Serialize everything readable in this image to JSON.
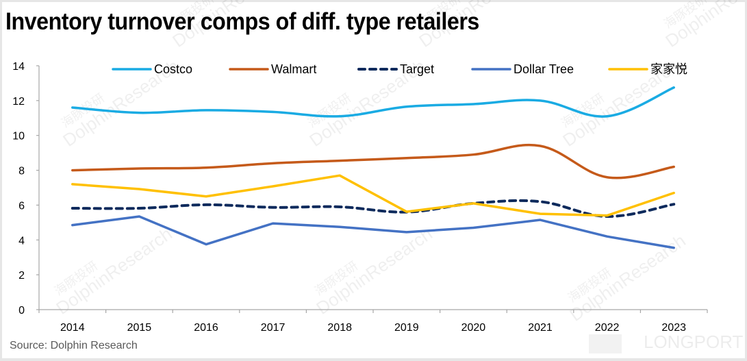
{
  "chart_data": {
    "type": "line",
    "title": "Inventory turnover comps of diff. type retailers",
    "xlabel": "",
    "ylabel": "",
    "ylim": [
      0,
      14
    ],
    "yticks": [
      0,
      2,
      4,
      6,
      8,
      10,
      12,
      14
    ],
    "grid": false,
    "legend_position": "top",
    "categories": [
      "2014",
      "2015",
      "2016",
      "2017",
      "2018",
      "2019",
      "2020",
      "2021",
      "2022",
      "2023"
    ],
    "series": [
      {
        "name": "Costco",
        "color": "#1AABE3",
        "style": "smooth",
        "values": [
          11.6,
          11.3,
          11.45,
          11.35,
          11.1,
          11.65,
          11.8,
          12.0,
          11.1,
          12.75
        ]
      },
      {
        "name": "Walmart",
        "color": "#C55A1A",
        "style": "smooth",
        "values": [
          8.0,
          8.1,
          8.15,
          8.4,
          8.55,
          8.7,
          8.9,
          9.4,
          7.6,
          8.2
        ]
      },
      {
        "name": "Target",
        "color": "#0D2A5C",
        "style": "dashed-smooth",
        "values": [
          5.82,
          5.82,
          6.02,
          5.87,
          5.9,
          5.6,
          6.1,
          6.2,
          5.35,
          6.05
        ]
      },
      {
        "name": "Dollar Tree",
        "color": "#4472C4",
        "style": "straight",
        "values": [
          4.85,
          5.35,
          3.75,
          4.95,
          4.75,
          4.45,
          4.7,
          5.15,
          4.2,
          3.55
        ]
      },
      {
        "name": "家家悦",
        "color": "#FFC000",
        "style": "straight",
        "values": [
          7.2,
          6.92,
          6.5,
          7.08,
          7.7,
          5.62,
          6.1,
          5.5,
          5.4,
          6.7
        ]
      }
    ]
  },
  "source": "Source: Dolphin Research",
  "watermark": {
    "en": "DolphinResearch",
    "cn": "海豚投研",
    "brand": "LONGPORT"
  }
}
